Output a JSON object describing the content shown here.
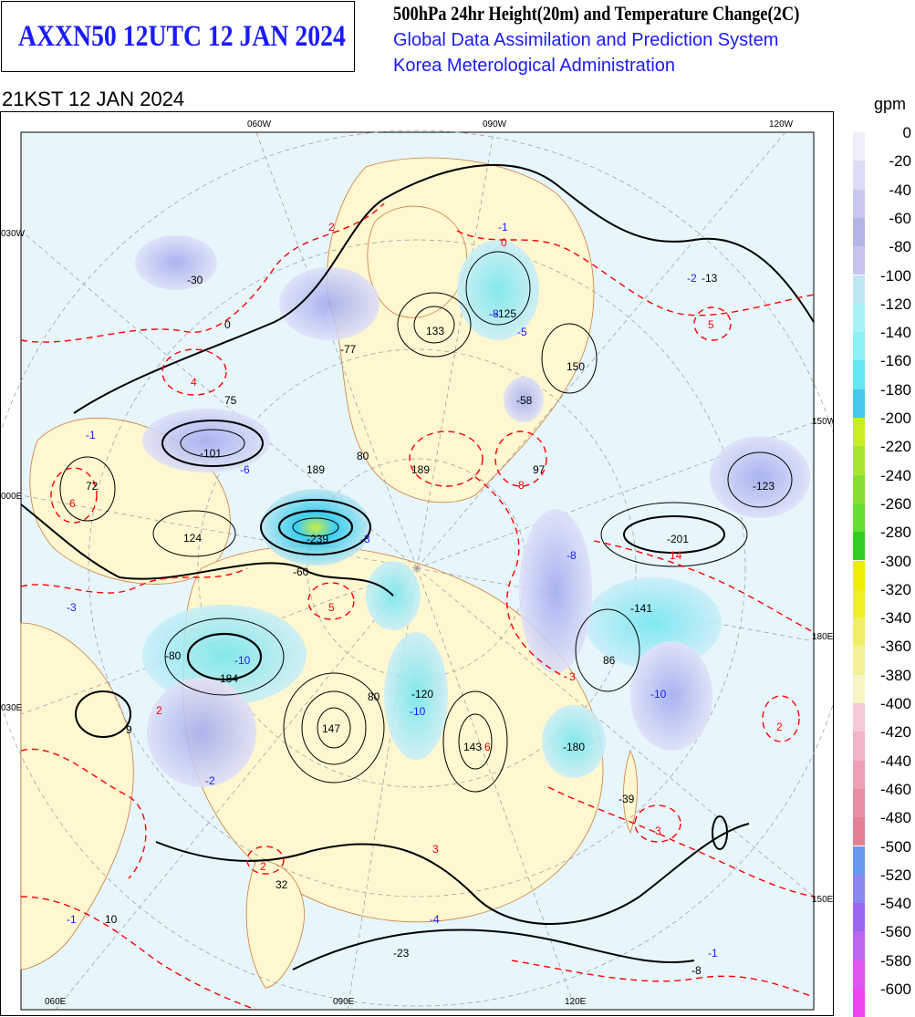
{
  "header": {
    "chart_id": "AXXN50 12UTC 12 JAN 2024",
    "title": "500hPa 24hr Height(20m) and Temperature Change(2C)",
    "org_line_1": "Global Data Assimilation and Prediction System",
    "org_line_2": "Korea Meterological Administration",
    "valid_time": "21KST 12 JAN 2024"
  },
  "map": {
    "lon_labels_top": [
      "060W",
      "090W",
      "120W"
    ],
    "lon_labels_bottom": [
      "060E",
      "090E",
      "120E"
    ],
    "lon_labels_left": [
      "030W",
      "000E",
      "030E"
    ],
    "lon_labels_right": [
      "150W",
      "180E",
      "150E"
    ],
    "height_centers": [
      {
        "value": "-30"
      },
      {
        "value": "-77"
      },
      {
        "value": "133"
      },
      {
        "value": "-125"
      },
      {
        "value": "-13"
      },
      {
        "value": "75"
      },
      {
        "value": "150"
      },
      {
        "value": "-58"
      },
      {
        "value": "-101"
      },
      {
        "value": "72"
      },
      {
        "value": "189"
      },
      {
        "value": "80"
      },
      {
        "value": "189"
      },
      {
        "value": "97"
      },
      {
        "value": "-123"
      },
      {
        "value": "124"
      },
      {
        "value": "-239"
      },
      {
        "value": "-201"
      },
      {
        "value": "-60"
      },
      {
        "value": "-141"
      },
      {
        "value": "-184"
      },
      {
        "value": "-80"
      },
      {
        "value": "86"
      },
      {
        "value": "80"
      },
      {
        "value": "-120"
      },
      {
        "value": "9"
      },
      {
        "value": "147"
      },
      {
        "value": "143"
      },
      {
        "value": "-180"
      },
      {
        "value": "-39"
      },
      {
        "value": "32"
      },
      {
        "value": "10"
      },
      {
        "value": "-23"
      },
      {
        "value": "-8"
      },
      {
        "value": "0"
      }
    ],
    "temp_warm_centers": [
      {
        "value": "2"
      },
      {
        "value": "0"
      },
      {
        "value": "4"
      },
      {
        "value": "5"
      },
      {
        "value": "6"
      },
      {
        "value": "8"
      },
      {
        "value": "14"
      },
      {
        "value": "3"
      },
      {
        "value": "5"
      },
      {
        "value": "2"
      },
      {
        "value": "6"
      },
      {
        "value": "2"
      },
      {
        "value": "3"
      },
      {
        "value": "3"
      },
      {
        "value": "2"
      }
    ],
    "temp_cold_centers": [
      {
        "value": "-1"
      },
      {
        "value": "-2"
      },
      {
        "value": "-5"
      },
      {
        "value": "-1"
      },
      {
        "value": "-6"
      },
      {
        "value": "-3"
      },
      {
        "value": "-8"
      },
      {
        "value": "-3"
      },
      {
        "value": "-10"
      },
      {
        "value": "-10"
      },
      {
        "value": "-10"
      },
      {
        "value": "-2"
      },
      {
        "value": "-1"
      },
      {
        "value": "-4"
      },
      {
        "value": "-1"
      },
      {
        "value": "-8"
      }
    ],
    "colors": {
      "height_contour": "#000000",
      "temp_contour": "#ff0000",
      "temp_cold_label": "#1a1aff",
      "land": "#fef7d0",
      "coast": "#cc6633",
      "ocean": "#e8f6fb"
    }
  },
  "legend": {
    "unit": "gpm",
    "labels": [
      "0",
      "-20",
      "-40",
      "-60",
      "-80",
      "-100",
      "-120",
      "-140",
      "-160",
      "-180",
      "-200",
      "-220",
      "-240",
      "-260",
      "-280",
      "-300",
      "-320",
      "-340",
      "-360",
      "-380",
      "-400",
      "-420",
      "-440",
      "-460",
      "-480",
      "-500",
      "-520",
      "-540",
      "-560",
      "-580",
      "-600"
    ],
    "colors": [
      "#eeeefa",
      "#dcdcf4",
      "#c8c8ee",
      "#b4b4e6",
      "#c4c4ee",
      "#bde7f2",
      "#a6f2f6",
      "#8cf0f4",
      "#66e6f0",
      "#44c8ee",
      "#c6ee22",
      "#a6e633",
      "#88dd33",
      "#66dd33",
      "#33cc22",
      "#eeee00",
      "#eeee22",
      "#f0ee66",
      "#f4f099",
      "#f8f4c4",
      "#f4c8d8",
      "#f2b4c8",
      "#ee9fb4",
      "#ea8ca4",
      "#e48094",
      "#6699ee",
      "#8888ee",
      "#9966ee",
      "#bb66ee",
      "#dd55ee",
      "#ee44ee"
    ]
  }
}
